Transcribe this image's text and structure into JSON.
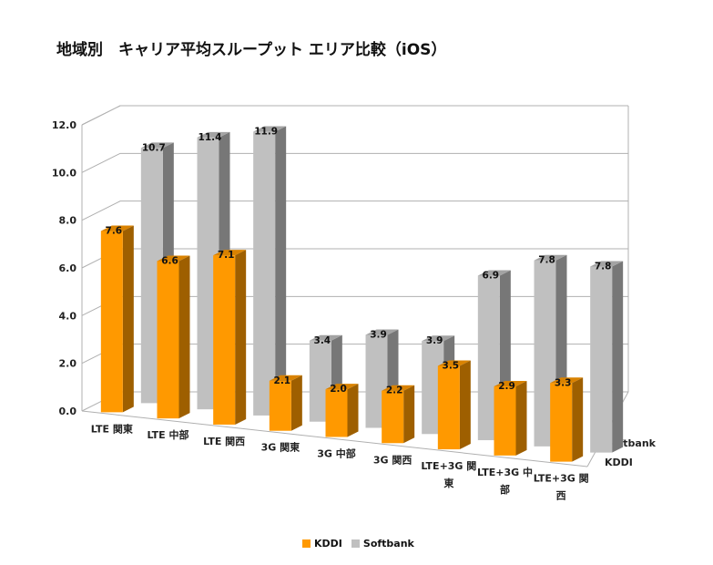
{
  "chart_data": {
    "type": "bar",
    "title": "地域別　キャリア平均スループット エリア比較（iOS）",
    "categories": [
      [
        "LTE 関東"
      ],
      [
        "LTE 中部"
      ],
      [
        "LTE 関西"
      ],
      [
        "3G 関東"
      ],
      [
        "3G 中部"
      ],
      [
        "3G 関西"
      ],
      [
        "LTE+3G 関",
        "東"
      ],
      [
        "LTE+3G 中",
        "部"
      ],
      [
        "LTE+3G 関",
        "西"
      ]
    ],
    "series": [
      {
        "name": "KDDI",
        "values": [
          7.6,
          6.6,
          7.1,
          2.1,
          2.0,
          2.2,
          3.5,
          2.9,
          3.3
        ],
        "color": "#FF9900"
      },
      {
        "name": "Softbank",
        "values": [
          10.7,
          11.4,
          11.9,
          3.4,
          3.9,
          3.9,
          6.9,
          7.8,
          7.8
        ],
        "color": "#C0C0C0"
      }
    ],
    "y_ticks": [
      "0.0",
      "2.0",
      "4.0",
      "6.0",
      "8.0",
      "10.0",
      "12.0"
    ],
    "ylim": [
      0,
      12
    ],
    "depth_labels": [
      "Softbank",
      "KDDI"
    ],
    "grid": true,
    "legend_position": "bottom"
  }
}
